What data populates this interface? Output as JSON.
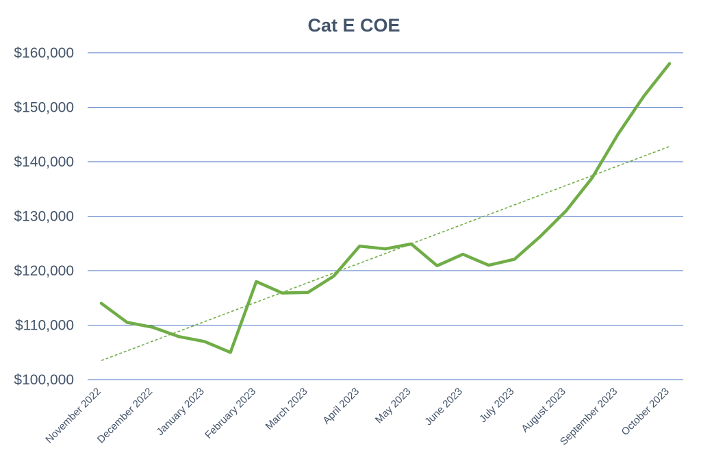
{
  "chart_data": {
    "type": "line",
    "title": "Cat E COE",
    "xlabel": "",
    "ylabel": "",
    "ylim": [
      100000,
      160000
    ],
    "y_ticks": [
      100000,
      110000,
      120000,
      130000,
      140000,
      150000,
      160000
    ],
    "y_tick_labels": [
      "$100,000",
      "$110,000",
      "$120,000",
      "$130,000",
      "$140,000",
      "$150,000",
      "$160,000"
    ],
    "x_tick_labels": [
      "November 2022",
      "December 2022",
      "January 2023",
      "February 2023",
      "March 2023",
      "April 2023",
      "May 2023",
      "June 2023",
      "July 2023",
      "August 2023",
      "September 2023",
      "October 2023"
    ],
    "grid": "horizontal",
    "colors": {
      "series": "#70ad47",
      "grid": "#4472c4",
      "text": "#44546a"
    },
    "series": [
      {
        "values": [
          114000,
          110500,
          109600,
          107900,
          107000,
          105000,
          118000,
          115900,
          116000,
          119000,
          124500,
          124000,
          124900,
          120900,
          123000,
          121000,
          122100,
          126300,
          131000,
          137000,
          145000,
          152000,
          158000
        ]
      }
    ],
    "trendline": {
      "type": "linear",
      "style": "dashed",
      "start": 103500,
      "end": 142800
    }
  }
}
